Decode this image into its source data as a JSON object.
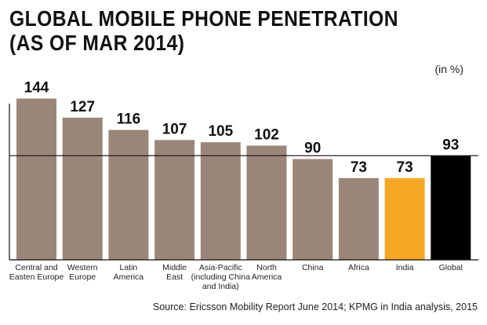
{
  "chart_data": {
    "type": "bar",
    "title_lines": [
      "GLOBAL MOBILE PHONE PENETRATION",
      "(AS OF MAR 2014)"
    ],
    "unit": "(in %)",
    "source": "Source: Ericsson Mobility Report June 2014; KPMG in India analysis, 2015",
    "categories": [
      [
        "Central and",
        "Easten Europe"
      ],
      [
        "Western",
        "Europe"
      ],
      [
        "Latin",
        "America"
      ],
      [
        "Middle",
        "East"
      ],
      [
        "Asia-Pacific",
        "(including China",
        "and India)"
      ],
      [
        "North",
        "America"
      ],
      [
        "China"
      ],
      [
        "Africa"
      ],
      [
        "India"
      ],
      [
        "Global"
      ]
    ],
    "values": [
      144,
      127,
      116,
      107,
      105,
      102,
      90,
      73,
      73,
      93
    ],
    "value_labels": [
      "144",
      "127",
      "116",
      "107",
      "105",
      "102",
      "90",
      "73",
      "73",
      "93"
    ],
    "colors": [
      "#9a8679",
      "#9a8679",
      "#9a8679",
      "#9a8679",
      "#9a8679",
      "#9a8679",
      "#9a8679",
      "#9a8679",
      "#f5a623",
      "#000000"
    ],
    "reference_line": 93,
    "ylim": [
      0,
      150
    ],
    "grid": false,
    "legend": "none"
  }
}
